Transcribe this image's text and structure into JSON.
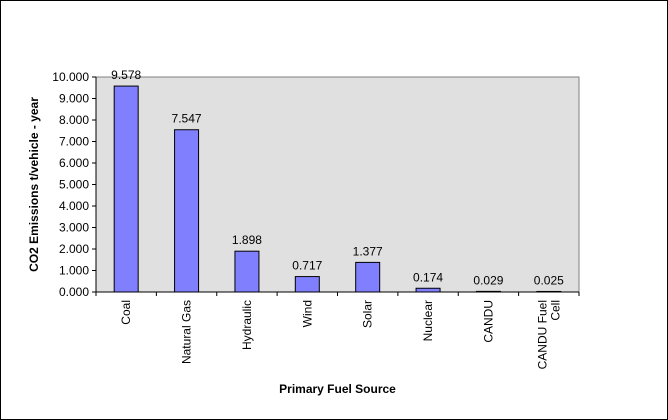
{
  "chart_data": {
    "type": "bar",
    "title": "",
    "xlabel": "Primary Fuel Source",
    "ylabel": "CO2 Emissions t/vehicle - year",
    "categories": [
      "Coal",
      "Natural Gas",
      "Hydraulic",
      "Wind",
      "Solar",
      "Nuclear",
      "CANDU",
      "CANDU Fuel Cell"
    ],
    "category_lines": [
      [
        "Coal"
      ],
      [
        "Natural Gas"
      ],
      [
        "Hydraulic"
      ],
      [
        "Wind"
      ],
      [
        "Solar"
      ],
      [
        "Nuclear"
      ],
      [
        "CANDU"
      ],
      [
        "CANDU Fuel",
        "Cell"
      ]
    ],
    "values": [
      9.578,
      7.547,
      1.898,
      0.717,
      1.377,
      0.174,
      0.029,
      0.025
    ],
    "value_labels": [
      "9.578",
      "7.547",
      "1.898",
      "0.717",
      "1.377",
      "0.174",
      "0.029",
      "0.025"
    ],
    "ylim": [
      0,
      10
    ],
    "yticks": [
      0,
      1,
      2,
      3,
      4,
      5,
      6,
      7,
      8,
      9,
      10
    ],
    "ytick_labels": [
      "0.000",
      "1.000",
      "2.000",
      "3.000",
      "4.000",
      "5.000",
      "6.000",
      "7.000",
      "8.000",
      "9.000",
      "10.000"
    ],
    "grid": false,
    "legend": "none",
    "colors": {
      "bar_fill": "#8080ff",
      "bar_stroke": "#000000",
      "plot_background": "#e0e0e0",
      "axis": "#000000"
    }
  }
}
